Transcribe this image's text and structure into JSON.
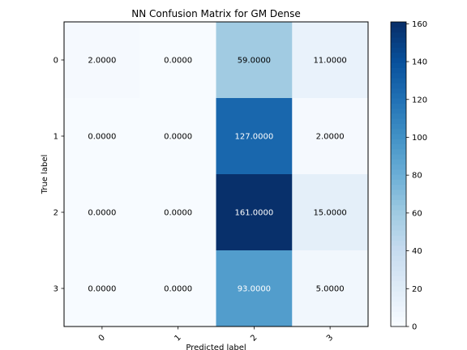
{
  "chart_data": {
    "type": "heatmap",
    "title": "NN Confusion Matrix for GM Dense",
    "xlabel": "Predicted label",
    "ylabel": "True label",
    "x_categories": [
      "0",
      "1",
      "2",
      "3"
    ],
    "y_categories": [
      "0",
      "1",
      "2",
      "3"
    ],
    "values": [
      [
        2,
        0,
        59,
        11
      ],
      [
        0,
        0,
        127,
        2
      ],
      [
        0,
        0,
        161,
        15
      ],
      [
        0,
        0,
        93,
        5
      ]
    ],
    "value_format": "4 decimals",
    "colormap": "Blues",
    "color_range": [
      0,
      161
    ],
    "colorbar_ticks": [
      0,
      20,
      40,
      60,
      80,
      100,
      120,
      140,
      160
    ],
    "grid": false,
    "x_tick_rotation_deg": 45
  }
}
